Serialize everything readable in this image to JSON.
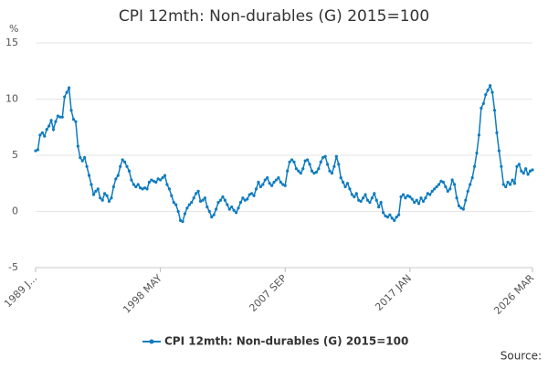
{
  "chart_data": {
    "type": "line",
    "title": "CPI 12mth: Non-durables (G) 2015=100",
    "y_unit": "%",
    "source": "Source:",
    "categories": [
      "1989 J...",
      null,
      null,
      null,
      null,
      null,
      null,
      null,
      null,
      null,
      null,
      null,
      null,
      null,
      null,
      null,
      null,
      null,
      null,
      null,
      null,
      null,
      null,
      null,
      null,
      null,
      null,
      null,
      null,
      null,
      null,
      null,
      null,
      null,
      null,
      null,
      null,
      null,
      null,
      null,
      null,
      null,
      null,
      null,
      null,
      null,
      null,
      null,
      null,
      null,
      null,
      null,
      null,
      null,
      null,
      null,
      "1998 MAY",
      null,
      null,
      null,
      null,
      null,
      null,
      null,
      null,
      null,
      null,
      null,
      null,
      null,
      null,
      null,
      null,
      null,
      null,
      null,
      null,
      null,
      null,
      null,
      null,
      null,
      null,
      null,
      null,
      null,
      null,
      null,
      null,
      null,
      null,
      null,
      null,
      null,
      null,
      null,
      null,
      null,
      null,
      null,
      null,
      null,
      null,
      null,
      null,
      null,
      null,
      null,
      null,
      null,
      null,
      null,
      "2007 SEP",
      null,
      null,
      null,
      null,
      null,
      null,
      null,
      null,
      null,
      null,
      null,
      null,
      null,
      null,
      null,
      null,
      null,
      null,
      null,
      null,
      null,
      null,
      null,
      null,
      null,
      null,
      null,
      null,
      null,
      null,
      null,
      null,
      null,
      null,
      null,
      null,
      null,
      null,
      null,
      null,
      null,
      null,
      null,
      null,
      null,
      null,
      null,
      null,
      null,
      null,
      null,
      null,
      null,
      null,
      null,
      "2017 JAN",
      null,
      null,
      null,
      null,
      null,
      null,
      null,
      null,
      null,
      null,
      null,
      null,
      null,
      null,
      null,
      null,
      null,
      null,
      null,
      null,
      null,
      null,
      null,
      null,
      null,
      null,
      null,
      null,
      null,
      null,
      null,
      null,
      null,
      null,
      null,
      null,
      null,
      null,
      null,
      null,
      null,
      null,
      null,
      null,
      null,
      null,
      null,
      null,
      null,
      null,
      null,
      null,
      null,
      null,
      "2026 MAR"
    ],
    "series": [
      {
        "name": "CPI 12mth: Non-durables (G) 2015=100",
        "color": "#0e7bc0",
        "values": [
          5.4,
          5.5,
          6.8,
          7.0,
          6.7,
          7.3,
          7.6,
          8.1,
          7.3,
          8.0,
          8.5,
          8.4,
          8.4,
          10.2,
          10.6,
          11.0,
          9.0,
          8.2,
          8.0,
          5.8,
          4.8,
          4.5,
          4.8,
          4.0,
          3.2,
          2.4,
          1.5,
          1.8,
          2.0,
          1.2,
          1.0,
          1.6,
          1.4,
          0.9,
          1.2,
          2.2,
          2.9,
          3.2,
          4.0,
          4.6,
          4.4,
          4.0,
          3.6,
          2.8,
          2.4,
          2.2,
          2.4,
          2.1,
          2.0,
          2.1,
          2.0,
          2.6,
          2.8,
          2.7,
          2.6,
          2.9,
          2.8,
          3.0,
          3.2,
          2.4,
          2.0,
          1.4,
          0.8,
          0.6,
          0.0,
          -0.8,
          -0.9,
          -0.2,
          0.3,
          0.6,
          0.8,
          1.2,
          1.6,
          1.8,
          0.9,
          1.0,
          1.2,
          0.4,
          0.0,
          -0.5,
          -0.3,
          0.2,
          0.8,
          1.0,
          1.3,
          1.0,
          0.6,
          0.2,
          0.4,
          0.1,
          -0.1,
          0.3,
          0.8,
          1.2,
          1.0,
          1.1,
          1.5,
          1.6,
          1.4,
          2.0,
          2.6,
          2.2,
          2.4,
          2.8,
          3.0,
          2.5,
          2.3,
          2.6,
          2.8,
          3.0,
          2.6,
          2.4,
          2.3,
          3.6,
          4.4,
          4.6,
          4.4,
          3.8,
          3.6,
          3.4,
          3.8,
          4.5,
          4.6,
          4.2,
          3.6,
          3.4,
          3.5,
          3.8,
          4.4,
          4.8,
          4.9,
          4.2,
          3.6,
          3.4,
          4.0,
          4.9,
          4.2,
          3.0,
          2.6,
          2.2,
          2.5,
          2.0,
          1.5,
          1.3,
          1.6,
          1.0,
          0.9,
          1.2,
          1.5,
          1.0,
          0.8,
          1.2,
          1.6,
          1.0,
          0.4,
          0.8,
          -0.1,
          -0.4,
          -0.5,
          -0.3,
          -0.6,
          -0.8,
          -0.5,
          -0.3,
          1.3,
          1.5,
          1.2,
          1.4,
          1.3,
          1.1,
          0.8,
          1.0,
          0.7,
          1.2,
          0.9,
          1.2,
          1.6,
          1.5,
          1.8,
          2.0,
          2.2,
          2.4,
          2.7,
          2.6,
          2.2,
          1.8,
          2.0,
          2.8,
          2.4,
          1.2,
          0.5,
          0.3,
          0.2,
          1.0,
          1.8,
          2.4,
          3.0,
          4.0,
          5.2,
          6.8,
          9.2,
          9.6,
          10.4,
          10.8,
          11.2,
          10.6,
          9.0,
          7.0,
          5.4,
          4.0,
          2.4,
          2.2,
          2.6,
          2.4,
          2.8,
          2.5,
          4.0,
          4.2,
          3.6,
          3.4,
          3.8,
          3.3,
          3.6,
          3.7
        ]
      }
    ],
    "ylim": [
      -5,
      15
    ],
    "yticks": [
      -5,
      0,
      5,
      10,
      15
    ],
    "grid": true,
    "legend": "bottom"
  }
}
